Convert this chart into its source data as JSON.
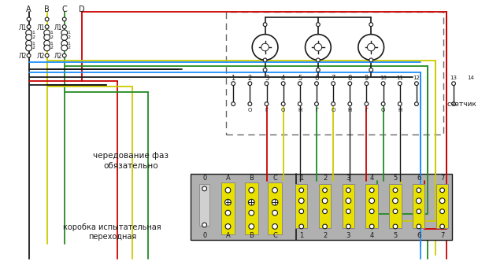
{
  "bg_color": "#ffffff",
  "black": "#1a1a1a",
  "red": "#cc0000",
  "yellow": "#cccc00",
  "green": "#228b22",
  "blue": "#1e90ff",
  "gray": "#b0b0b0",
  "dark_yellow": "#c8c800",
  "labels": {
    "schetchik": "счетчик",
    "chered": "чередование фаз",
    "obyaz": "обязательно",
    "korobka1": "коробка испытательная",
    "korobka2": "переходная"
  }
}
